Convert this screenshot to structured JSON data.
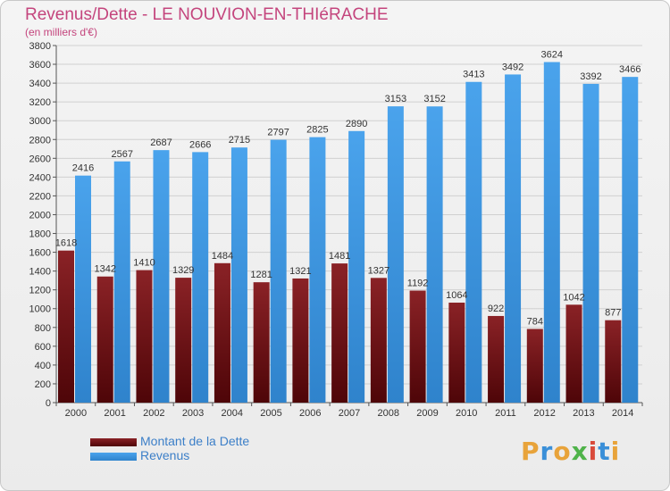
{
  "header": {
    "title": "Revenus/Dette - LE NOUVION-EN-THIéRACHE",
    "subtitle": "(en milliers d'€)"
  },
  "legend": {
    "items": [
      {
        "label": "Montant de la Dette",
        "color": "#7a1a1e"
      },
      {
        "label": "Revenus",
        "color": "#3f97e0"
      }
    ]
  },
  "logo": {
    "text": "Proxiti"
  },
  "colors": {
    "title": "#c4457d",
    "debt_bar": "#7a1a1e",
    "revenue_bar": "#3f97e0",
    "gridline": "#d0d0d0"
  },
  "chart_data": {
    "type": "bar",
    "title": "Revenus/Dette - LE NOUVION-EN-THIéRACHE",
    "subtitle": "(en milliers d'€)",
    "categories": [
      "2000",
      "2001",
      "2002",
      "2003",
      "2004",
      "2005",
      "2006",
      "2007",
      "2008",
      "2009",
      "2010",
      "2011",
      "2012",
      "2013",
      "2014"
    ],
    "series": [
      {
        "name": "Montant de la Dette",
        "values": [
          1618,
          1342,
          1410,
          1329,
          1484,
          1281,
          1321,
          1481,
          1327,
          1192,
          1064,
          922,
          784,
          1042,
          877
        ],
        "labels": [
          "1618",
          "1342",
          "1410",
          "1329",
          "1484",
          "1281",
          "1321",
          "1481",
          "1327",
          "1192",
          "1064",
          "922",
          "784",
          "1042",
          "877"
        ]
      },
      {
        "name": "Revenus",
        "values": [
          2416,
          2567,
          2687,
          2666,
          2715,
          2797,
          2825,
          2890,
          3153,
          3152,
          3413,
          3492,
          3624,
          3392,
          3466
        ],
        "labels": [
          "2416",
          "2567",
          "2687",
          "2666",
          "2715",
          "2797",
          "2825",
          "2890",
          "3153",
          "3152",
          "3413",
          "3492",
          "3624",
          "3392",
          "3466"
        ]
      }
    ],
    "yticks": [
      "0",
      "200",
      "400",
      "600",
      "800",
      "1000",
      "1200",
      "1400",
      "1600",
      "1800",
      "2000",
      "2200",
      "2400",
      "2600",
      "2800",
      "3000",
      "3200",
      "3400",
      "3600",
      "3800"
    ],
    "ylim": [
      0,
      3800
    ],
    "grid": true,
    "legend_position": "bottom-left"
  }
}
